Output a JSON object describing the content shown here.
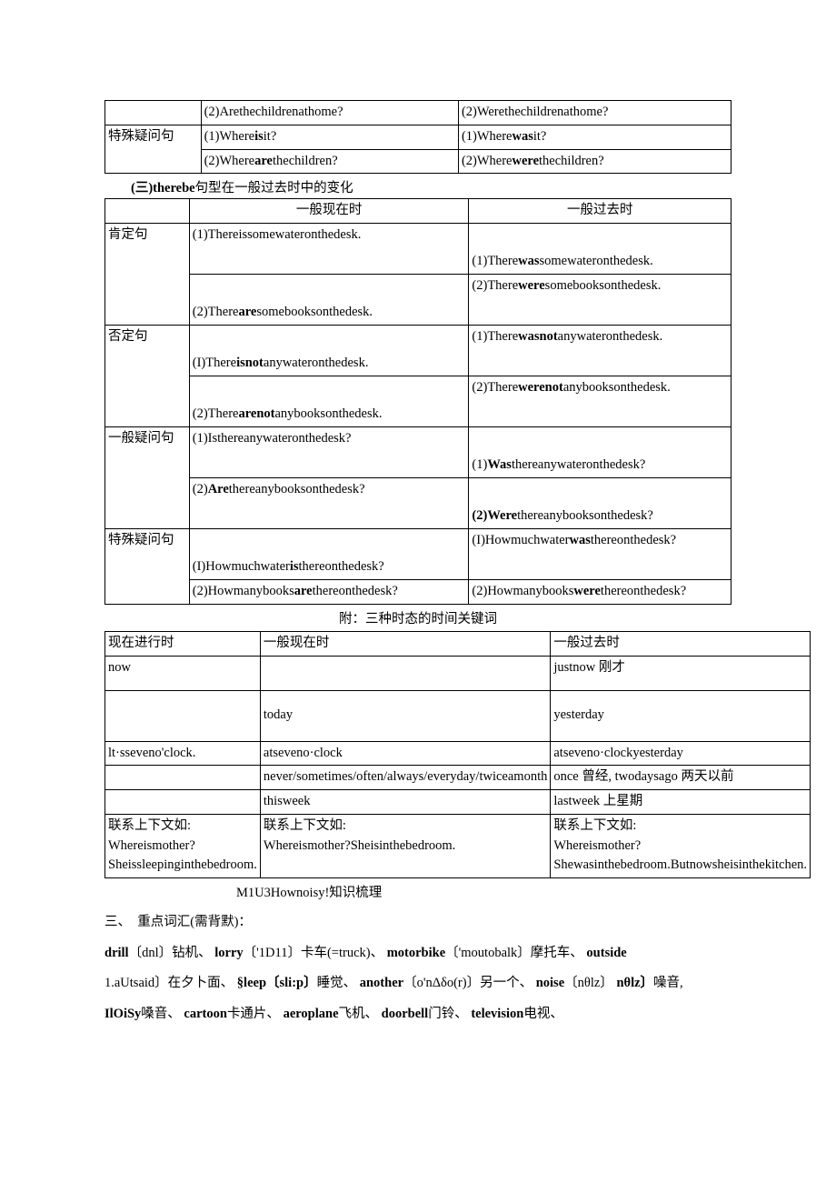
{
  "colors": {
    "text": "#000000",
    "background": "#ffffff",
    "border": "#000000"
  },
  "typography": {
    "body_family": "SimSun",
    "body_size_pt": 11,
    "line_height": 1.5
  },
  "table1": {
    "rows": [
      {
        "c2": "(2)Arethechildrenathome?",
        "c3": "(2)Werethechildrenathome?"
      },
      {
        "c1": "特殊疑问句",
        "c2a": "(1)Where",
        "c2b": "is",
        "c2c": "it?",
        "c3a": "(1)Where",
        "c3b": "was",
        "c3c": "it?"
      },
      {
        "c2a": "(2)Where",
        "c2b": "are",
        "c2c": "thechildren?",
        "c3a": "(2)Where",
        "c3b": "were",
        "c3c": "thechildren?"
      }
    ]
  },
  "section3_title_a": "(三)therebe",
  "section3_title_b": "句型在一般过去时中的变化",
  "table2": {
    "head": {
      "c2": "一般现在时",
      "c3": "一般过去时"
    },
    "rows": [
      {
        "c1": "肯定句",
        "r1c2": "(1)Thereissomewateronthedesk.",
        "r1c3_a": "(1)There",
        "r1c3_b": "was",
        "r1c3_c": "somewateronthedesk.",
        "r2c2_a": "(2)There",
        "r2c2_b": "are",
        "r2c2_c": "somebooksonthedesk.",
        "r2c3_a": "(2)There",
        "r2c3_b": "were",
        "r2c3_c": "somebooksonthedesk."
      },
      {
        "c1": "否定句",
        "r1c2_a": "(I)There",
        "r1c2_b": "isnot",
        "r1c2_c": "anywateronthedesk.",
        "r1c3_a": "(1)There",
        "r1c3_b": "wasnot",
        "r1c3_c": "anywateronthedesk.",
        "r2c2_a": "(2)There",
        "r2c2_b": "arenot",
        "r2c2_c": "anybooksonthedesk.",
        "r2c3_a": "(2)There",
        "r2c3_b": "werenot",
        "r2c3_c": "anybooksonthedesk."
      },
      {
        "c1": "一般疑问句",
        "r1c2": "(1)Isthereanywateronthedesk?",
        "r1c3_a": "(1)",
        "r1c3_b": "Was",
        "r1c3_c": "thereanywateronthedesk?",
        "r2c2_a": "(2)",
        "r2c2_b": "Are",
        "r2c2_c": "thereanybooksonthedesk?",
        "r2c3_a": "(2)Were",
        "r2c3_c": "thereanybooksonthedesk?"
      },
      {
        "c1": "特殊疑问句",
        "r1c2_a": "(I)Howmuchwater",
        "r1c2_b": "is",
        "r1c2_c": "thereonthedesk?",
        "r1c3_a": "(I)Howmuchwater",
        "r1c3_b": "was",
        "r1c3_c": "thereonthedesk?",
        "r2c2_a": "(2)Howmanybooks",
        "r2c2_b": "are",
        "r2c2_c": "thereonthedesk?",
        "r2c3_a": "(2)Howmanybooks",
        "r2c3_b": "were",
        "r2c3_c": "thereonthedesk?"
      }
    ]
  },
  "caption2": "附：三种时态的时间关键词",
  "table3": {
    "head": {
      "c1": "现在进行时",
      "c2": "一般现在时",
      "c3": "一般过去时"
    },
    "rows": [
      {
        "c1": "now",
        "c2": "",
        "c3": "justnow 刚才"
      },
      {
        "c1": "",
        "c2": "today",
        "c3": "yesterday"
      },
      {
        "c1": "lt·sseveno'clock.",
        "c2": "atseveno·clock",
        "c3": "atseveno·clockyesterday"
      },
      {
        "c1": "",
        "c2": "never/sometimes/often/always/everyday/twiceamonth",
        "c3": "once 曾经, twodaysago 两天以前"
      },
      {
        "c1": "",
        "c2": "thisweek",
        "c3": "lastweek 上星期"
      },
      {
        "c1": "联系上下文如:\nWhereismother?\nSheissleepinginthebedroom.",
        "c2": "联系上下文如:\nWhereismother?Sheisinthebedroom.",
        "c3": "联系上下文如:\nWhereismother?\nShewasinthebedroom.Butnowsheisinthekitchen."
      }
    ]
  },
  "caption3": "M1U3Hownoisy!知识梳理",
  "vocab_heading": "三、　重点词汇(需背默)：",
  "p1": {
    "t1": "drill",
    "t2": "〔dnl〕",
    "t3": "钻机、",
    "t4": "lorry",
    "t5": "〔'1D11〕",
    "t6": "卡车(=truck)、",
    "t7": "motorbike",
    "t8": "〔'moutobalk〕",
    "t9": "摩托车、",
    "t10": "outside"
  },
  "p2": {
    "t1": "1.aUtsaid〕在夕卜面、",
    "t2": "§leep〔sli:p〕",
    "t3": "睡觉、",
    "t4": "another",
    "t5": "〔o'nΔδo(r)〕",
    "t6": "另一个、",
    "t7": "noise",
    "t8": "〔nθlz〕",
    "t9": "噪音,"
  },
  "p3": {
    "t1": "IlOiSy",
    "t2": "嗓音、",
    "t3": "cartoon",
    "t4": "卡通片、",
    "t5": "aeroplane",
    "t6": "飞机、",
    "t7": "doorbell",
    "t8": "门铃、",
    "t9": "television",
    "t10": "电视、"
  }
}
